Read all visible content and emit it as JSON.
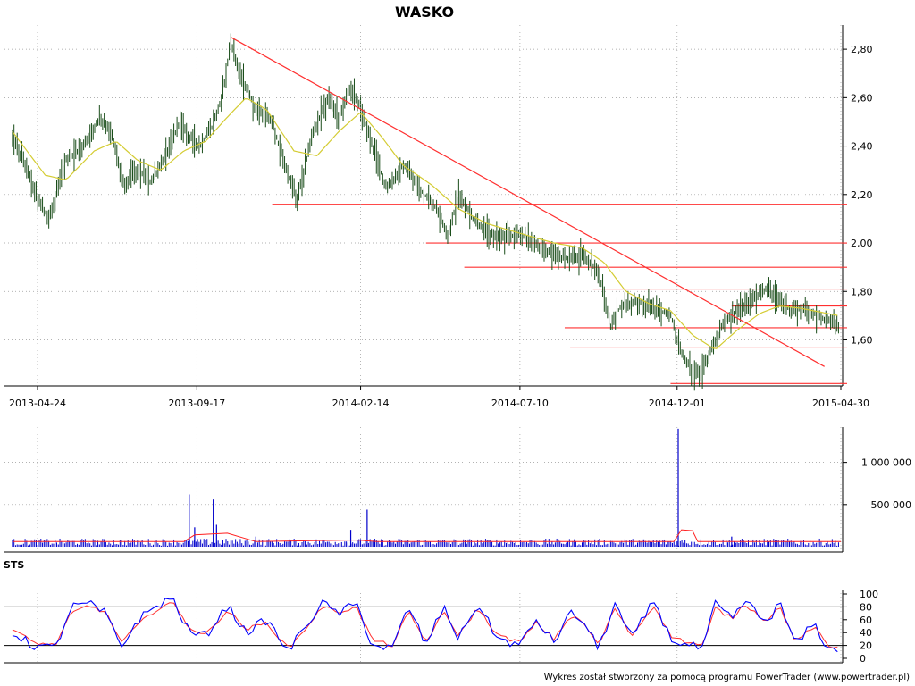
{
  "chart_data": {
    "type": "line",
    "title": "WASKO",
    "footer": "Wykres został stworzony za pomocą programu PowerTrader (www.powertrader.pl)",
    "colors": {
      "price": "#1a4d1a",
      "ma": "#d4cc33",
      "trend": "#ff3030",
      "volume": "#0000cc",
      "volume_ma": "#ff2020",
      "sts_k": "#0000ff",
      "sts_d": "#ff3030",
      "grid": "#999999"
    },
    "x_date_labels": [
      "2013-04-24",
      "2013-09-17",
      "2014-02-14",
      "2014-07-10",
      "2014-12-01",
      "2015-04-30"
    ],
    "price_panel": {
      "ylim": [
        1.41,
        2.9
      ],
      "y_ticks": [
        1.6,
        1.8,
        2.0,
        2.2,
        2.4,
        2.6,
        2.8
      ],
      "y_tick_labels": [
        "1,60",
        "1,80",
        "2,00",
        "2,20",
        "2,40",
        "2,60",
        "2,80"
      ],
      "series_close": [
        [
          "2013-04-01",
          2.44
        ],
        [
          "2013-04-15",
          2.3
        ],
        [
          "2013-04-24",
          2.18
        ],
        [
          "2013-05-05",
          2.1
        ],
        [
          "2013-05-20",
          2.34
        ],
        [
          "2013-06-05",
          2.4
        ],
        [
          "2013-06-20",
          2.52
        ],
        [
          "2013-07-01",
          2.45
        ],
        [
          "2013-07-12",
          2.24
        ],
        [
          "2013-07-25",
          2.31
        ],
        [
          "2013-08-05",
          2.25
        ],
        [
          "2013-08-15",
          2.32
        ],
        [
          "2013-08-25",
          2.42
        ],
        [
          "2013-09-01",
          2.5
        ],
        [
          "2013-09-10",
          2.44
        ],
        [
          "2013-09-20",
          2.4
        ],
        [
          "2013-10-01",
          2.48
        ],
        [
          "2013-10-10",
          2.6
        ],
        [
          "2013-10-18",
          2.83
        ],
        [
          "2013-10-28",
          2.68
        ],
        [
          "2013-11-10",
          2.55
        ],
        [
          "2013-11-25",
          2.5
        ],
        [
          "2013-12-08",
          2.3
        ],
        [
          "2013-12-18",
          2.18
        ],
        [
          "2014-01-01",
          2.45
        ],
        [
          "2014-01-15",
          2.6
        ],
        [
          "2014-01-25",
          2.52
        ],
        [
          "2014-02-05",
          2.65
        ],
        [
          "2014-02-14",
          2.55
        ],
        [
          "2014-03-01",
          2.35
        ],
        [
          "2014-03-10",
          2.22
        ],
        [
          "2014-03-25",
          2.32
        ],
        [
          "2014-04-10",
          2.22
        ],
        [
          "2014-04-25",
          2.14
        ],
        [
          "2014-05-05",
          2.03
        ],
        [
          "2014-05-15",
          2.2
        ],
        [
          "2014-05-28",
          2.1
        ],
        [
          "2014-06-10",
          2.04
        ],
        [
          "2014-06-25",
          2.02
        ],
        [
          "2014-07-10",
          2.04
        ],
        [
          "2014-07-25",
          1.99
        ],
        [
          "2014-08-10",
          1.95
        ],
        [
          "2014-08-25",
          1.93
        ],
        [
          "2014-09-05",
          1.95
        ],
        [
          "2014-09-20",
          1.88
        ],
        [
          "2014-10-01",
          1.65
        ],
        [
          "2014-10-10",
          1.74
        ],
        [
          "2014-10-25",
          1.76
        ],
        [
          "2014-11-10",
          1.73
        ],
        [
          "2014-11-25",
          1.7
        ],
        [
          "2014-12-05",
          1.55
        ],
        [
          "2014-12-15",
          1.46
        ],
        [
          "2014-12-25",
          1.48
        ],
        [
          "2015-01-05",
          1.6
        ],
        [
          "2015-01-15",
          1.68
        ],
        [
          "2015-01-28",
          1.73
        ],
        [
          "2015-02-10",
          1.77
        ],
        [
          "2015-02-20",
          1.81
        ],
        [
          "2015-03-01",
          1.78
        ],
        [
          "2015-03-15",
          1.72
        ],
        [
          "2015-03-25",
          1.73
        ],
        [
          "2015-04-10",
          1.7
        ],
        [
          "2015-04-25",
          1.66
        ]
      ],
      "series_ma": [
        [
          "2013-04-01",
          2.46
        ],
        [
          "2013-05-01",
          2.28
        ],
        [
          "2013-05-20",
          2.26
        ],
        [
          "2013-06-15",
          2.38
        ],
        [
          "2013-07-05",
          2.42
        ],
        [
          "2013-07-25",
          2.34
        ],
        [
          "2013-08-15",
          2.3
        ],
        [
          "2013-09-05",
          2.38
        ],
        [
          "2013-09-25",
          2.42
        ],
        [
          "2013-10-15",
          2.52
        ],
        [
          "2013-11-01",
          2.6
        ],
        [
          "2013-11-20",
          2.55
        ],
        [
          "2013-12-15",
          2.38
        ],
        [
          "2014-01-05",
          2.36
        ],
        [
          "2014-01-25",
          2.46
        ],
        [
          "2014-02-14",
          2.54
        ],
        [
          "2014-03-05",
          2.44
        ],
        [
          "2014-03-25",
          2.32
        ],
        [
          "2014-04-20",
          2.24
        ],
        [
          "2014-05-15",
          2.14
        ],
        [
          "2014-06-10",
          2.08
        ],
        [
          "2014-07-10",
          2.04
        ],
        [
          "2014-08-10",
          2.0
        ],
        [
          "2014-09-05",
          1.98
        ],
        [
          "2014-09-25",
          1.92
        ],
        [
          "2014-10-15",
          1.8
        ],
        [
          "2014-11-05",
          1.75
        ],
        [
          "2014-11-25",
          1.72
        ],
        [
          "2014-12-15",
          1.62
        ],
        [
          "2015-01-05",
          1.56
        ],
        [
          "2015-01-25",
          1.64
        ],
        [
          "2015-02-15",
          1.71
        ],
        [
          "2015-03-05",
          1.74
        ],
        [
          "2015-03-25",
          1.73
        ],
        [
          "2015-04-28",
          1.7
        ]
      ],
      "trend_line": [
        [
          "2013-10-18",
          2.85
        ],
        [
          "2015-04-15",
          1.49
        ]
      ],
      "support_lines": [
        {
          "y": 2.16,
          "x_start": "2013-11-25",
          "x_end": "2015-04-30"
        },
        {
          "y": 2.0,
          "x_start": "2014-04-15",
          "x_end": "2015-04-30"
        },
        {
          "y": 1.9,
          "x_start": "2014-05-20",
          "x_end": "2015-04-30"
        },
        {
          "y": 1.81,
          "x_start": "2014-09-15",
          "x_end": "2015-04-30"
        },
        {
          "y": 1.74,
          "x_start": "2015-01-20",
          "x_end": "2015-04-30"
        },
        {
          "y": 1.65,
          "x_start": "2014-08-20",
          "x_end": "2015-04-30"
        },
        {
          "y": 1.57,
          "x_start": "2014-08-25",
          "x_end": "2015-04-30"
        },
        {
          "y": 1.42,
          "x_start": "2014-11-25",
          "x_end": "2015-04-30"
        }
      ]
    },
    "volume_panel": {
      "ylim": [
        0,
        1420000
      ],
      "y_ticks": [
        500000,
        1000000
      ],
      "y_tick_labels": [
        "500 000",
        "1 000 000"
      ],
      "spikes": [
        [
          "2013-09-10",
          620000
        ],
        [
          "2013-10-02",
          560000
        ],
        [
          "2014-02-20",
          440000
        ],
        [
          "2013-09-15",
          230000
        ],
        [
          "2013-10-05",
          260000
        ],
        [
          "2013-11-10",
          120000
        ],
        [
          "2014-02-05",
          200000
        ],
        [
          "2014-12-02",
          1400000
        ],
        [
          "2015-01-20",
          120000
        ]
      ],
      "baseline_volume": 60000,
      "volume_ma": [
        [
          "2013-04-01",
          60000
        ],
        [
          "2013-09-05",
          60000
        ],
        [
          "2013-09-15",
          140000
        ],
        [
          "2013-10-15",
          160000
        ],
        [
          "2013-11-10",
          60000
        ],
        [
          "2014-02-10",
          80000
        ],
        [
          "2014-03-01",
          60000
        ],
        [
          "2014-11-28",
          60000
        ],
        [
          "2014-12-05",
          200000
        ],
        [
          "2014-12-15",
          190000
        ],
        [
          "2014-12-20",
          60000
        ],
        [
          "2015-04-30",
          60000
        ]
      ]
    },
    "sts_panel": {
      "label": "STS",
      "ylim": [
        0,
        100
      ],
      "y_ticks": [
        0,
        20,
        40,
        60,
        80,
        100
      ],
      "y_tick_labels": [
        "0",
        "20",
        "40",
        "60",
        "80",
        "100"
      ],
      "levels": [
        20,
        80
      ],
      "series_k": [
        [
          "2013-04-01",
          40
        ],
        [
          "2013-04-20",
          20
        ],
        [
          "2013-05-10",
          15
        ],
        [
          "2013-05-25",
          80
        ],
        [
          "2013-06-10",
          85
        ],
        [
          "2013-06-25",
          70
        ],
        [
          "2013-07-10",
          18
        ],
        [
          "2013-07-25",
          60
        ],
        [
          "2013-08-10",
          80
        ],
        [
          "2013-08-25",
          95
        ],
        [
          "2013-09-10",
          40
        ],
        [
          "2013-09-25",
          35
        ],
        [
          "2013-10-15",
          82
        ],
        [
          "2013-11-01",
          40
        ],
        [
          "2013-11-20",
          60
        ],
        [
          "2013-12-10",
          10
        ],
        [
          "2013-12-25",
          50
        ],
        [
          "2014-01-10",
          85
        ],
        [
          "2014-01-25",
          70
        ],
        [
          "2014-02-10",
          85
        ],
        [
          "2014-02-25",
          20
        ],
        [
          "2014-03-15",
          15
        ],
        [
          "2014-03-30",
          80
        ],
        [
          "2014-04-15",
          20
        ],
        [
          "2014-05-01",
          80
        ],
        [
          "2014-05-15",
          30
        ],
        [
          "2014-06-01",
          85
        ],
        [
          "2014-06-20",
          30
        ],
        [
          "2014-07-10",
          20
        ],
        [
          "2014-07-25",
          60
        ],
        [
          "2014-08-10",
          25
        ],
        [
          "2014-08-25",
          70
        ],
        [
          "2014-09-05",
          60
        ],
        [
          "2014-09-20",
          15
        ],
        [
          "2014-10-05",
          85
        ],
        [
          "2014-10-20",
          30
        ],
        [
          "2014-11-10",
          90
        ],
        [
          "2014-11-25",
          30
        ],
        [
          "2014-12-10",
          20
        ],
        [
          "2014-12-25",
          15
        ],
        [
          "2015-01-05",
          85
        ],
        [
          "2015-01-20",
          60
        ],
        [
          "2015-02-01",
          90
        ],
        [
          "2015-02-20",
          55
        ],
        [
          "2015-03-05",
          85
        ],
        [
          "2015-03-20",
          20
        ],
        [
          "2015-04-05",
          55
        ],
        [
          "2015-04-20",
          10
        ],
        [
          "2015-04-30",
          18
        ]
      ],
      "series_d": [
        [
          "2013-04-01",
          45
        ],
        [
          "2013-04-20",
          25
        ],
        [
          "2013-05-10",
          20
        ],
        [
          "2013-05-25",
          70
        ],
        [
          "2013-06-10",
          82
        ],
        [
          "2013-06-25",
          72
        ],
        [
          "2013-07-10",
          25
        ],
        [
          "2013-07-25",
          52
        ],
        [
          "2013-08-10",
          75
        ],
        [
          "2013-08-25",
          88
        ],
        [
          "2013-09-10",
          48
        ],
        [
          "2013-09-25",
          36
        ],
        [
          "2013-10-15",
          75
        ],
        [
          "2013-11-01",
          45
        ],
        [
          "2013-11-20",
          55
        ],
        [
          "2013-12-10",
          15
        ],
        [
          "2013-12-25",
          45
        ],
        [
          "2014-01-10",
          80
        ],
        [
          "2014-01-25",
          72
        ],
        [
          "2014-02-10",
          80
        ],
        [
          "2014-02-25",
          28
        ],
        [
          "2014-03-15",
          20
        ],
        [
          "2014-03-30",
          72
        ],
        [
          "2014-04-15",
          25
        ],
        [
          "2014-05-01",
          72
        ],
        [
          "2014-05-15",
          35
        ],
        [
          "2014-06-01",
          78
        ],
        [
          "2014-06-20",
          35
        ],
        [
          "2014-07-10",
          25
        ],
        [
          "2014-07-25",
          55
        ],
        [
          "2014-08-10",
          30
        ],
        [
          "2014-08-25",
          65
        ],
        [
          "2014-09-05",
          58
        ],
        [
          "2014-09-20",
          20
        ],
        [
          "2014-10-05",
          78
        ],
        [
          "2014-10-20",
          35
        ],
        [
          "2014-11-10",
          82
        ],
        [
          "2014-11-25",
          35
        ],
        [
          "2014-12-10",
          25
        ],
        [
          "2014-12-25",
          20
        ],
        [
          "2015-01-05",
          78
        ],
        [
          "2015-01-20",
          62
        ],
        [
          "2015-02-01",
          85
        ],
        [
          "2015-02-20",
          58
        ],
        [
          "2015-03-05",
          80
        ],
        [
          "2015-03-20",
          25
        ],
        [
          "2015-04-05",
          50
        ],
        [
          "2015-04-20",
          15
        ],
        [
          "2015-04-30",
          20
        ]
      ]
    }
  }
}
